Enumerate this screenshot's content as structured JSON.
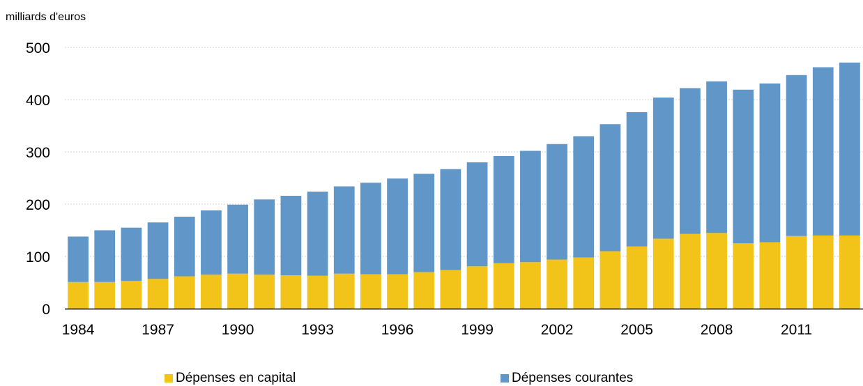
{
  "chart_data": {
    "type": "bar",
    "stacked": true,
    "ylabel": "milliards d'euros",
    "ylim": [
      0,
      500
    ],
    "yticks": [
      0,
      100,
      200,
      300,
      400,
      500
    ],
    "grid": true,
    "legend_position": "bottom",
    "categories": [
      "1984",
      "1985",
      "1986",
      "1987",
      "1988",
      "1989",
      "1990",
      "1991",
      "1992",
      "1993",
      "1994",
      "1995",
      "1996",
      "1997",
      "1998",
      "1999",
      "2000",
      "2001",
      "2002",
      "2003",
      "2004",
      "2005",
      "2006",
      "2007",
      "2008",
      "2009",
      "2010",
      "2011",
      "2012",
      "2013"
    ],
    "xtick_labels": [
      "1984",
      "1987",
      "1990",
      "1993",
      "1996",
      "1999",
      "2002",
      "2005",
      "2008",
      "2011"
    ],
    "series": [
      {
        "name": "Dépenses en capital",
        "color": "#f2c318",
        "values": [
          51,
          51,
          53,
          57,
          62,
          65,
          67,
          65,
          64,
          63,
          67,
          66,
          66,
          70,
          74,
          81,
          87,
          89,
          94,
          98,
          110,
          119,
          134,
          143,
          145,
          125,
          127,
          139,
          140,
          140
        ]
      },
      {
        "name": "Dépenses courantes",
        "color": "#6196c9",
        "values": [
          87,
          99,
          102,
          108,
          114,
          123,
          132,
          144,
          152,
          161,
          167,
          175,
          183,
          188,
          193,
          199,
          205,
          213,
          221,
          232,
          243,
          257,
          270,
          279,
          290,
          294,
          304,
          308,
          322,
          331
        ]
      }
    ]
  },
  "colors": {
    "grid": "#d0d0d0",
    "axis": "#000000"
  }
}
